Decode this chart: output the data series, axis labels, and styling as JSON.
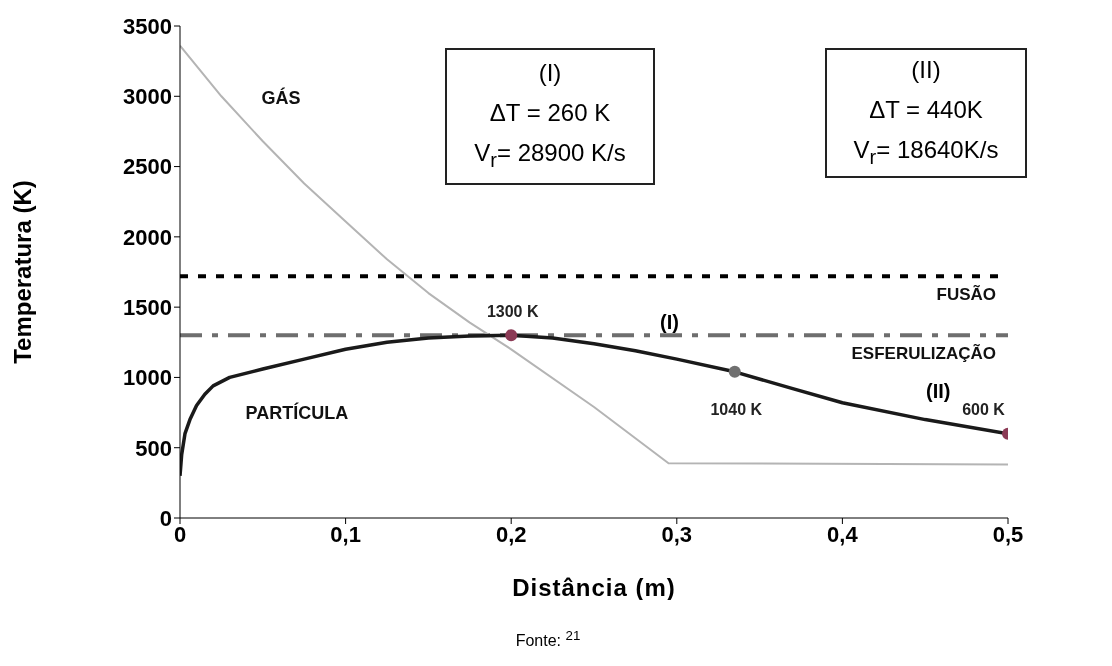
{
  "chart_data": {
    "type": "line",
    "xlabel": "Distância (m)",
    "ylabel": "Temperatura (K)",
    "xlim": [
      0,
      0.5
    ],
    "xticks": [
      {
        "value": 0,
        "label": "0"
      },
      {
        "value": 0.1,
        "label": "0,1"
      },
      {
        "value": 0.2,
        "label": "0,2"
      },
      {
        "value": 0.3,
        "label": "0,3"
      },
      {
        "value": 0.4,
        "label": "0,4"
      },
      {
        "value": 0.5,
        "label": "0,5"
      }
    ],
    "ylim": [
      0,
      3500
    ],
    "yticks": [
      0,
      500,
      1000,
      1500,
      2000,
      2500,
      3000,
      3500
    ],
    "series": [
      {
        "name": "GÁS",
        "color": "#b4b4b4",
        "x": [
          0,
          0.025,
          0.05,
          0.075,
          0.1,
          0.125,
          0.15,
          0.175,
          0.2,
          0.25,
          0.295,
          0.5
        ],
        "values": [
          3360,
          3000,
          2680,
          2380,
          2110,
          1840,
          1600,
          1390,
          1200,
          790,
          390,
          380
        ]
      },
      {
        "name": "PARTÍCULA",
        "color": "#1a1a1a",
        "x": [
          0,
          0.001,
          0.003,
          0.006,
          0.01,
          0.015,
          0.02,
          0.03,
          0.05,
          0.075,
          0.1,
          0.125,
          0.15,
          0.175,
          0.2,
          0.225,
          0.25,
          0.275,
          0.3,
          0.335,
          0.37,
          0.4,
          0.45,
          0.5
        ],
        "values": [
          300,
          450,
          600,
          700,
          800,
          880,
          940,
          1000,
          1060,
          1130,
          1200,
          1250,
          1280,
          1295,
          1300,
          1280,
          1240,
          1190,
          1130,
          1040,
          920,
          820,
          700,
          600
        ]
      },
      {
        "type": "scatter",
        "marker": "circle",
        "colors": [
          "#8b3a55",
          "#707070",
          "#8b3a55"
        ],
        "x": [
          0.2,
          0.335,
          0.5
        ],
        "values": [
          1300,
          1040,
          600
        ],
        "value_labels": [
          "1300 K",
          "1040 K",
          "600 K"
        ]
      }
    ],
    "ref_lines": [
      {
        "axis": "y",
        "value": 1720,
        "label": "FUSÃO",
        "color": "#000000",
        "line_style": "dotted"
      },
      {
        "axis": "y",
        "value": 1300,
        "label": "ESFERULIZAÇÃO",
        "color": "#6e6e6e",
        "line_style": "dashed"
      }
    ],
    "annotations": [
      "(I)\nΔT = 260 K\nV$_{r}$= 28900 K/s",
      "(II)\nΔT = 440K\nV$_{r}$= 18640K/s",
      "(I)",
      "(II)",
      "Fonte: $^{21}$"
    ]
  }
}
